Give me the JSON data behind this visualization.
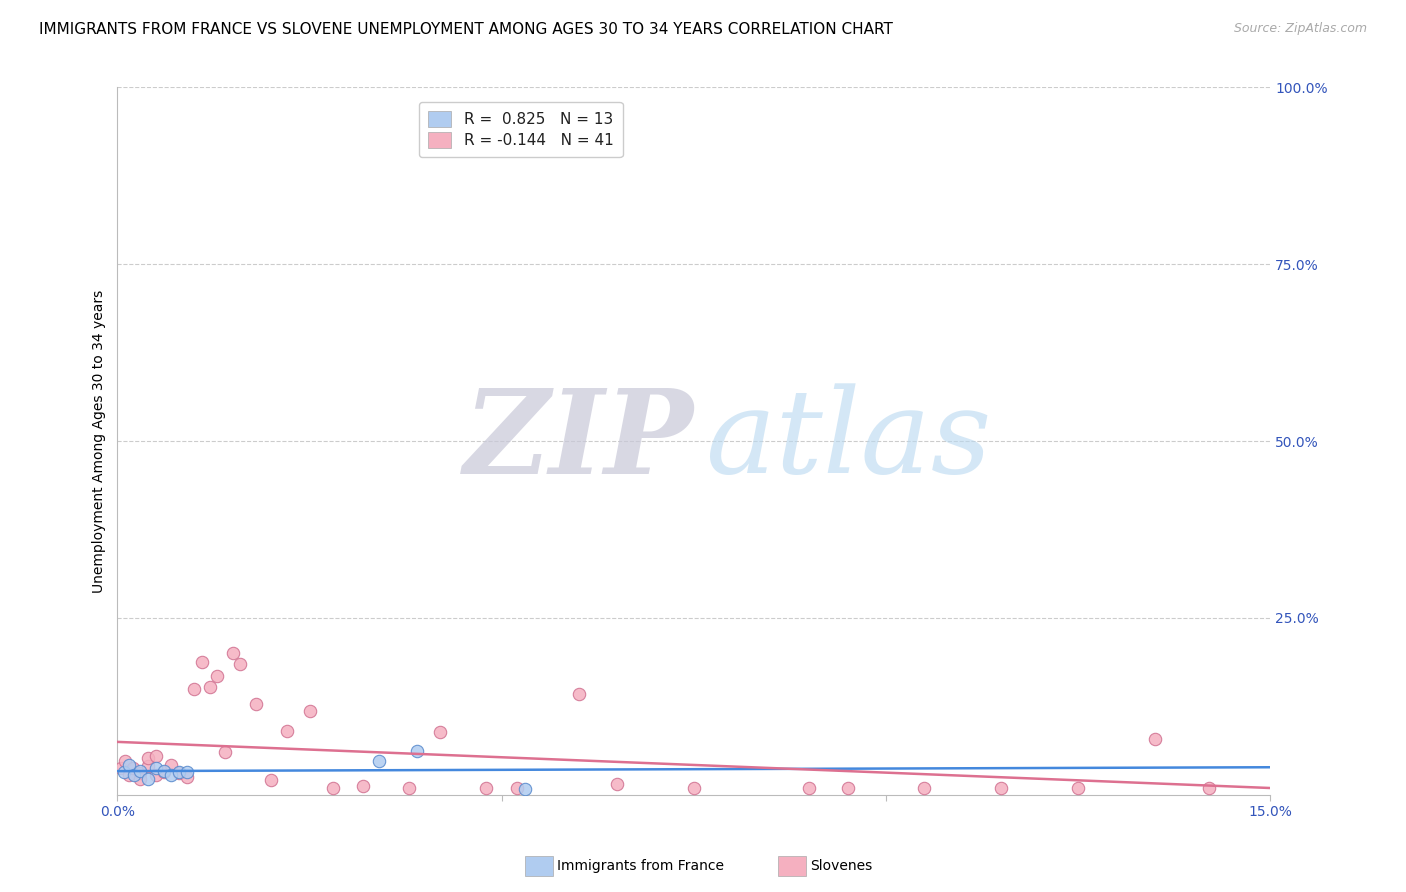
{
  "title": "IMMIGRANTS FROM FRANCE VS SLOVENE UNEMPLOYMENT AMONG AGES 30 TO 34 YEARS CORRELATION CHART",
  "source": "Source: ZipAtlas.com",
  "ylabel": "Unemployment Among Ages 30 to 34 years",
  "xlim": [
    0.0,
    0.15
  ],
  "ylim": [
    0.0,
    1.0
  ],
  "xticks": [
    0.0,
    0.05,
    0.1,
    0.15
  ],
  "xtick_labels": [
    "0.0%",
    "",
    "",
    "15.0%"
  ],
  "yticks_right": [
    0.0,
    0.25,
    0.5,
    0.75,
    1.0
  ],
  "ytick_right_labels": [
    "",
    "25.0%",
    "50.0%",
    "75.0%",
    "100.0%"
  ],
  "grid_yticks": [
    0.25,
    0.5,
    0.75,
    1.0
  ],
  "legend_r1": "0.825",
  "legend_r2": "-0.144",
  "legend_n1": "13",
  "legend_n2": "41",
  "france_scatter_x": [
    0.0008,
    0.0015,
    0.0022,
    0.003,
    0.004,
    0.005,
    0.006,
    0.007,
    0.008,
    0.009,
    0.034,
    0.039,
    0.053
  ],
  "france_scatter_y": [
    0.032,
    0.042,
    0.028,
    0.033,
    0.022,
    0.038,
    0.033,
    0.028,
    0.032,
    0.032,
    0.048,
    0.062,
    0.008
  ],
  "slovene_scatter_x": [
    0.0005,
    0.001,
    0.0015,
    0.002,
    0.003,
    0.003,
    0.004,
    0.004,
    0.005,
    0.005,
    0.006,
    0.007,
    0.008,
    0.009,
    0.01,
    0.011,
    0.012,
    0.013,
    0.014,
    0.015,
    0.016,
    0.018,
    0.02,
    0.022,
    0.025,
    0.028,
    0.032,
    0.038,
    0.042,
    0.048,
    0.052,
    0.06,
    0.065,
    0.075,
    0.09,
    0.095,
    0.105,
    0.115,
    0.125,
    0.135,
    0.142
  ],
  "slovene_scatter_y": [
    0.038,
    0.048,
    0.028,
    0.038,
    0.03,
    0.022,
    0.04,
    0.052,
    0.028,
    0.055,
    0.032,
    0.042,
    0.03,
    0.025,
    0.15,
    0.188,
    0.152,
    0.168,
    0.06,
    0.2,
    0.185,
    0.128,
    0.02,
    0.09,
    0.118,
    0.01,
    0.012,
    0.01,
    0.088,
    0.01,
    0.01,
    0.142,
    0.015,
    0.01,
    0.01,
    0.01,
    0.01,
    0.01,
    0.01,
    0.078,
    0.01
  ],
  "france_fill_color": "#b0ccf0",
  "france_edge_color": "#5588cc",
  "slovene_fill_color": "#f5b0c0",
  "slovene_edge_color": "#d07090",
  "france_line_color": "#4488dd",
  "slovene_line_color": "#dd7090",
  "background_color": "#ffffff",
  "title_fontsize": 11,
  "source_fontsize": 9,
  "legend_fontsize": 11,
  "ylabel_fontsize": 10,
  "tick_fontsize": 10,
  "watermark_zip_color": "#c8c8d8",
  "watermark_atlas_color": "#b8d8f0"
}
